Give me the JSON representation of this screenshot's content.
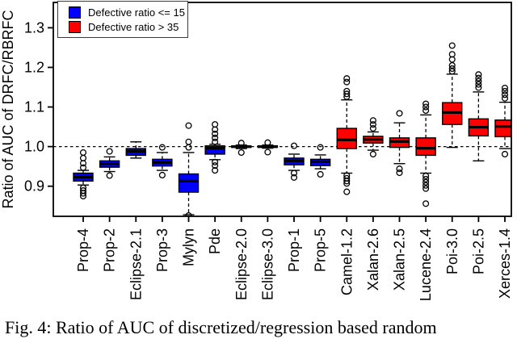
{
  "legend": {
    "items": [
      {
        "label": "Defective ratio <= 15",
        "color": "#0000ff"
      },
      {
        "label": "Defective ratio > 35",
        "color": "#ff0000"
      }
    ]
  },
  "caption": "Fig. 4: Ratio of AUC of discretized/regression based random",
  "chart_data": {
    "type": "boxplot",
    "title": "",
    "xlabel": "",
    "ylabel": "Ratio of AUC of DRFC/RBRFC",
    "ylim": [
      0.824,
      1.364
    ],
    "yticks": [
      0.9,
      1.0,
      1.1,
      1.2,
      1.3
    ],
    "reference_line": 1.0,
    "grid": false,
    "legend_position": "top-left",
    "group_colors": {
      "Defective ratio <= 15": "#0000ff",
      "Defective ratio > 35": "#ff0000"
    },
    "categories": [
      "Prop-4",
      "Prop-2",
      "Eclipse-2.1",
      "Prop-3",
      "Mylyn",
      "Pde",
      "Eclipse-2.0",
      "Eclipse-3.0",
      "Prop-1",
      "Prop-5",
      "Camel-1.2",
      "Xalan-2.6",
      "Xalan-2.5",
      "Lucene-2.4",
      "Poi-3.0",
      "Poi-2.5",
      "Xerces-1.4"
    ],
    "boxes": [
      {
        "category": "Prop-4",
        "group": "Defective ratio <= 15",
        "color": "#0000ff",
        "whisker_low": 0.903,
        "q1": 0.913,
        "median": 0.923,
        "q3": 0.933,
        "whisker_high": 0.94,
        "outliers": [
          0.985,
          0.971,
          0.958,
          0.947,
          0.896,
          0.889,
          0.882,
          0.875
        ]
      },
      {
        "category": "Prop-2",
        "group": "Defective ratio <= 15",
        "color": "#0000ff",
        "whisker_low": 0.937,
        "q1": 0.948,
        "median": 0.957,
        "q3": 0.964,
        "whisker_high": 0.974,
        "outliers": [
          0.988,
          0.927
        ]
      },
      {
        "category": "Eclipse-2.1",
        "group": "Defective ratio <= 15",
        "color": "#0000ff",
        "whisker_low": 0.971,
        "q1": 0.978,
        "median": 0.988,
        "q3": 0.995,
        "whisker_high": 1.012,
        "outliers": []
      },
      {
        "category": "Prop-3",
        "group": "Defective ratio <= 15",
        "color": "#0000ff",
        "whisker_low": 0.94,
        "q1": 0.951,
        "median": 0.96,
        "q3": 0.968,
        "whisker_high": 0.985,
        "outliers": [
          0.998,
          0.928
        ]
      },
      {
        "category": "Mylyn",
        "group": "Defective ratio <= 15",
        "color": "#0000ff",
        "whisker_low": 0.828,
        "q1": 0.885,
        "median": 0.913,
        "q3": 0.931,
        "whisker_high": 0.985,
        "outliers": [
          1.053,
          1.012,
          0.998,
          0.826
        ]
      },
      {
        "category": "Pde",
        "group": "Defective ratio <= 15",
        "color": "#0000ff",
        "whisker_low": 0.967,
        "q1": 0.981,
        "median": 0.996,
        "q3": 1.002,
        "whisker_high": 1.006,
        "outliers": [
          1.056,
          1.043,
          1.032,
          1.022,
          1.012,
          0.961,
          0.952,
          0.94
        ]
      },
      {
        "category": "Eclipse-2.0",
        "group": "Defective ratio <= 15",
        "color": "#0000ff",
        "whisker_low": 0.995,
        "q1": 0.998,
        "median": 1.0,
        "q3": 1.002,
        "whisker_high": 1.004,
        "outliers": [
          1.009,
          0.985
        ]
      },
      {
        "category": "Eclipse-3.0",
        "group": "Defective ratio <= 15",
        "color": "#0000ff",
        "whisker_low": 0.996,
        "q1": 0.998,
        "median": 1.0,
        "q3": 1.002,
        "whisker_high": 1.004,
        "outliers": [
          1.01,
          0.986
        ]
      },
      {
        "category": "Prop-1",
        "group": "Defective ratio <= 15",
        "color": "#0000ff",
        "whisker_low": 0.94,
        "q1": 0.954,
        "median": 0.964,
        "q3": 0.971,
        "whisker_high": 0.981,
        "outliers": [
          1.002,
          0.933,
          0.922
        ]
      },
      {
        "category": "Prop-5",
        "group": "Defective ratio <= 15",
        "color": "#0000ff",
        "whisker_low": 0.944,
        "q1": 0.952,
        "median": 0.962,
        "q3": 0.968,
        "whisker_high": 0.979,
        "outliers": [
          0.998,
          0.93
        ]
      },
      {
        "category": "Camel-1.2",
        "group": "Defective ratio > 35",
        "color": "#ff0000",
        "whisker_low": 0.933,
        "q1": 0.995,
        "median": 1.017,
        "q3": 1.046,
        "whisker_high": 1.118,
        "outliers": [
          1.172,
          1.163,
          1.14,
          1.133,
          1.126,
          0.927,
          0.92,
          0.913,
          0.907,
          0.886
        ]
      },
      {
        "category": "Xalan-2.6",
        "group": "Defective ratio > 35",
        "color": "#ff0000",
        "whisker_low": 0.991,
        "q1": 1.009,
        "median": 1.018,
        "q3": 1.026,
        "whisker_high": 1.037,
        "outliers": [
          1.066,
          1.056,
          1.046,
          0.981
        ]
      },
      {
        "category": "Xalan-2.5",
        "group": "Defective ratio > 35",
        "color": "#ff0000",
        "whisker_low": 0.957,
        "q1": 0.998,
        "median": 1.013,
        "q3": 1.022,
        "whisker_high": 1.06,
        "outliers": [
          1.084,
          0.944,
          0.934
        ]
      },
      {
        "category": "Lucene-2.4",
        "group": "Defective ratio > 35",
        "color": "#ff0000",
        "whisker_low": 0.933,
        "q1": 0.978,
        "median": 0.996,
        "q3": 1.022,
        "whisker_high": 1.08,
        "outliers": [
          1.108,
          1.1,
          1.091,
          0.926,
          0.918,
          0.91,
          0.902,
          0.894,
          0.856
        ]
      },
      {
        "category": "Poi-3.0",
        "group": "Defective ratio > 35",
        "color": "#ff0000",
        "whisker_low": 0.998,
        "q1": 1.056,
        "median": 1.086,
        "q3": 1.111,
        "whisker_high": 1.183,
        "outliers": [
          1.255,
          1.233,
          1.22,
          1.205,
          1.197,
          1.19
        ]
      },
      {
        "category": "Poi-2.5",
        "group": "Defective ratio > 35",
        "color": "#ff0000",
        "whisker_low": 0.964,
        "q1": 1.027,
        "median": 1.049,
        "q3": 1.07,
        "whisker_high": 1.138,
        "outliers": [
          1.182,
          1.173,
          1.165,
          1.157,
          1.149
        ]
      },
      {
        "category": "Xerces-1.4",
        "group": "Defective ratio > 35",
        "color": "#ff0000",
        "whisker_low": 0.995,
        "q1": 1.025,
        "median": 1.051,
        "q3": 1.067,
        "whisker_high": 1.112,
        "outliers": [
          1.148,
          1.14,
          1.131,
          1.122,
          0.981
        ]
      }
    ]
  }
}
